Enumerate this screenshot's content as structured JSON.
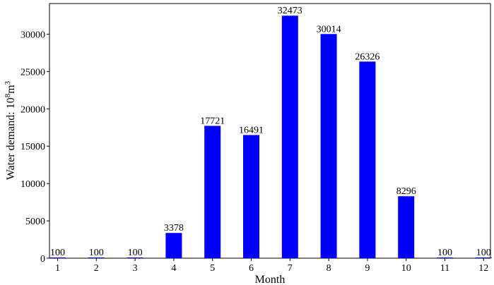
{
  "chart_data": {
    "type": "bar",
    "title": "",
    "xlabel": "Month",
    "ylabel": "Water demand: 10⁸m³",
    "ylabel_parts": {
      "base": "Water demand: 10",
      "exp1": "8",
      "mid": "m",
      "exp2": "3"
    },
    "categories": [
      "1",
      "2",
      "3",
      "4",
      "5",
      "6",
      "7",
      "8",
      "9",
      "10",
      "11",
      "12"
    ],
    "values": [
      100,
      100,
      100,
      3378,
      17721,
      16491,
      32473,
      30014,
      26326,
      8296,
      100,
      100
    ],
    "data_labels": [
      "100",
      "100",
      "100",
      "3378",
      "17721",
      "16491",
      "32473",
      "30014",
      "26326",
      "8296",
      "100",
      "100"
    ],
    "ylim": [
      0,
      34100
    ],
    "yticks": [
      0,
      5000,
      10000,
      15000,
      20000,
      25000,
      30000
    ],
    "ytick_labels": [
      "0",
      "5000",
      "10000",
      "15000",
      "20000",
      "25000",
      "30000"
    ],
    "bar_color": "#0000ff",
    "grid": false,
    "legend": false
  }
}
